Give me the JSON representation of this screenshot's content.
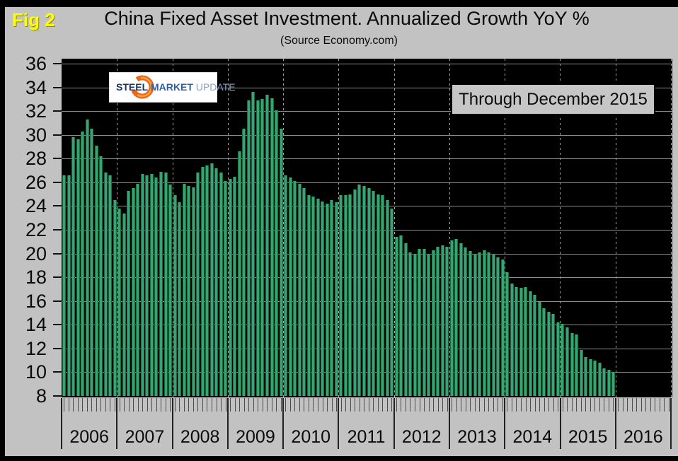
{
  "fig_label": "Fig 2",
  "title": "China Fixed Asset Investment. Annualized Growth YoY %",
  "subtitle": "(Source Economy.com)",
  "annotation": "Through December 2015",
  "logo": {
    "steel": "STEEL",
    "market": "MARKET",
    "update": "UPDATE"
  },
  "colors": {
    "page_bg": "#c2c2c2",
    "plot_bg": "#000000",
    "bar_fill": "#3ba273",
    "bar_edge": "#136b40",
    "gridline": "#8e8e8e",
    "year_dash": "#a8a8a8",
    "fig_label_yellow": "#ffff00",
    "annotation_bg": "#c6c6c6",
    "logo_orange": "#ea671c",
    "logo_steel_navy": "#16355f",
    "logo_market_blue": "#2d5fa8",
    "logo_update_blue": "#8aa2c6"
  },
  "chart_data": {
    "type": "bar",
    "title": "China Fixed Asset Investment. Annualized Growth YoY %",
    "source": "(Source Economy.com)",
    "annotation": "Through December 2015",
    "ylabel": "Annualized Growth YoY %",
    "ylim": [
      8,
      36
    ],
    "ytick_step": 2,
    "grid": true,
    "plot_background": "black",
    "x_years": [
      "2006",
      "2007",
      "2008",
      "2009",
      "2010",
      "2011",
      "2012",
      "2013",
      "2014",
      "2015",
      "2016"
    ],
    "months_per_year": 12,
    "data_range": "Jan 2006 - Dec 2015",
    "series": [
      {
        "name": "China FAI annualized growth YoY %",
        "values": [
          26.6,
          26.6,
          29.8,
          29.6,
          30.3,
          31.3,
          30.5,
          29.1,
          28.2,
          26.8,
          26.6,
          24.5,
          23.8,
          23.4,
          25.3,
          25.5,
          25.9,
          26.7,
          26.6,
          26.7,
          26.4,
          26.9,
          26.8,
          25.8,
          24.9,
          24.3,
          25.9,
          25.7,
          25.6,
          26.8,
          27.3,
          27.4,
          27.6,
          27.2,
          26.8,
          26.1,
          26.3,
          26.5,
          28.6,
          30.5,
          32.9,
          33.6,
          32.9,
          33.0,
          33.4,
          33.1,
          32.1,
          30.5,
          26.6,
          26.4,
          26.1,
          25.9,
          25.5,
          24.9,
          24.8,
          24.6,
          24.4,
          24.2,
          24.5,
          24.3,
          24.9,
          24.9,
          25.0,
          25.4,
          25.8,
          25.7,
          25.5,
          25.3,
          25.0,
          24.9,
          24.5,
          23.8,
          21.4,
          21.5,
          20.9,
          20.1,
          20.0,
          20.4,
          20.4,
          20.0,
          20.3,
          20.6,
          20.7,
          20.6,
          21.1,
          21.2,
          20.9,
          20.5,
          20.2,
          20.0,
          20.1,
          20.3,
          20.1,
          20.0,
          19.7,
          19.5,
          18.4,
          17.5,
          17.2,
          17.1,
          17.2,
          16.8,
          16.5,
          15.9,
          15.4,
          15.1,
          14.9,
          14.2,
          14.1,
          13.8,
          13.3,
          13.2,
          11.9,
          11.3,
          11.1,
          11.0,
          10.8,
          10.3,
          10.2,
          10.0
        ]
      }
    ]
  }
}
